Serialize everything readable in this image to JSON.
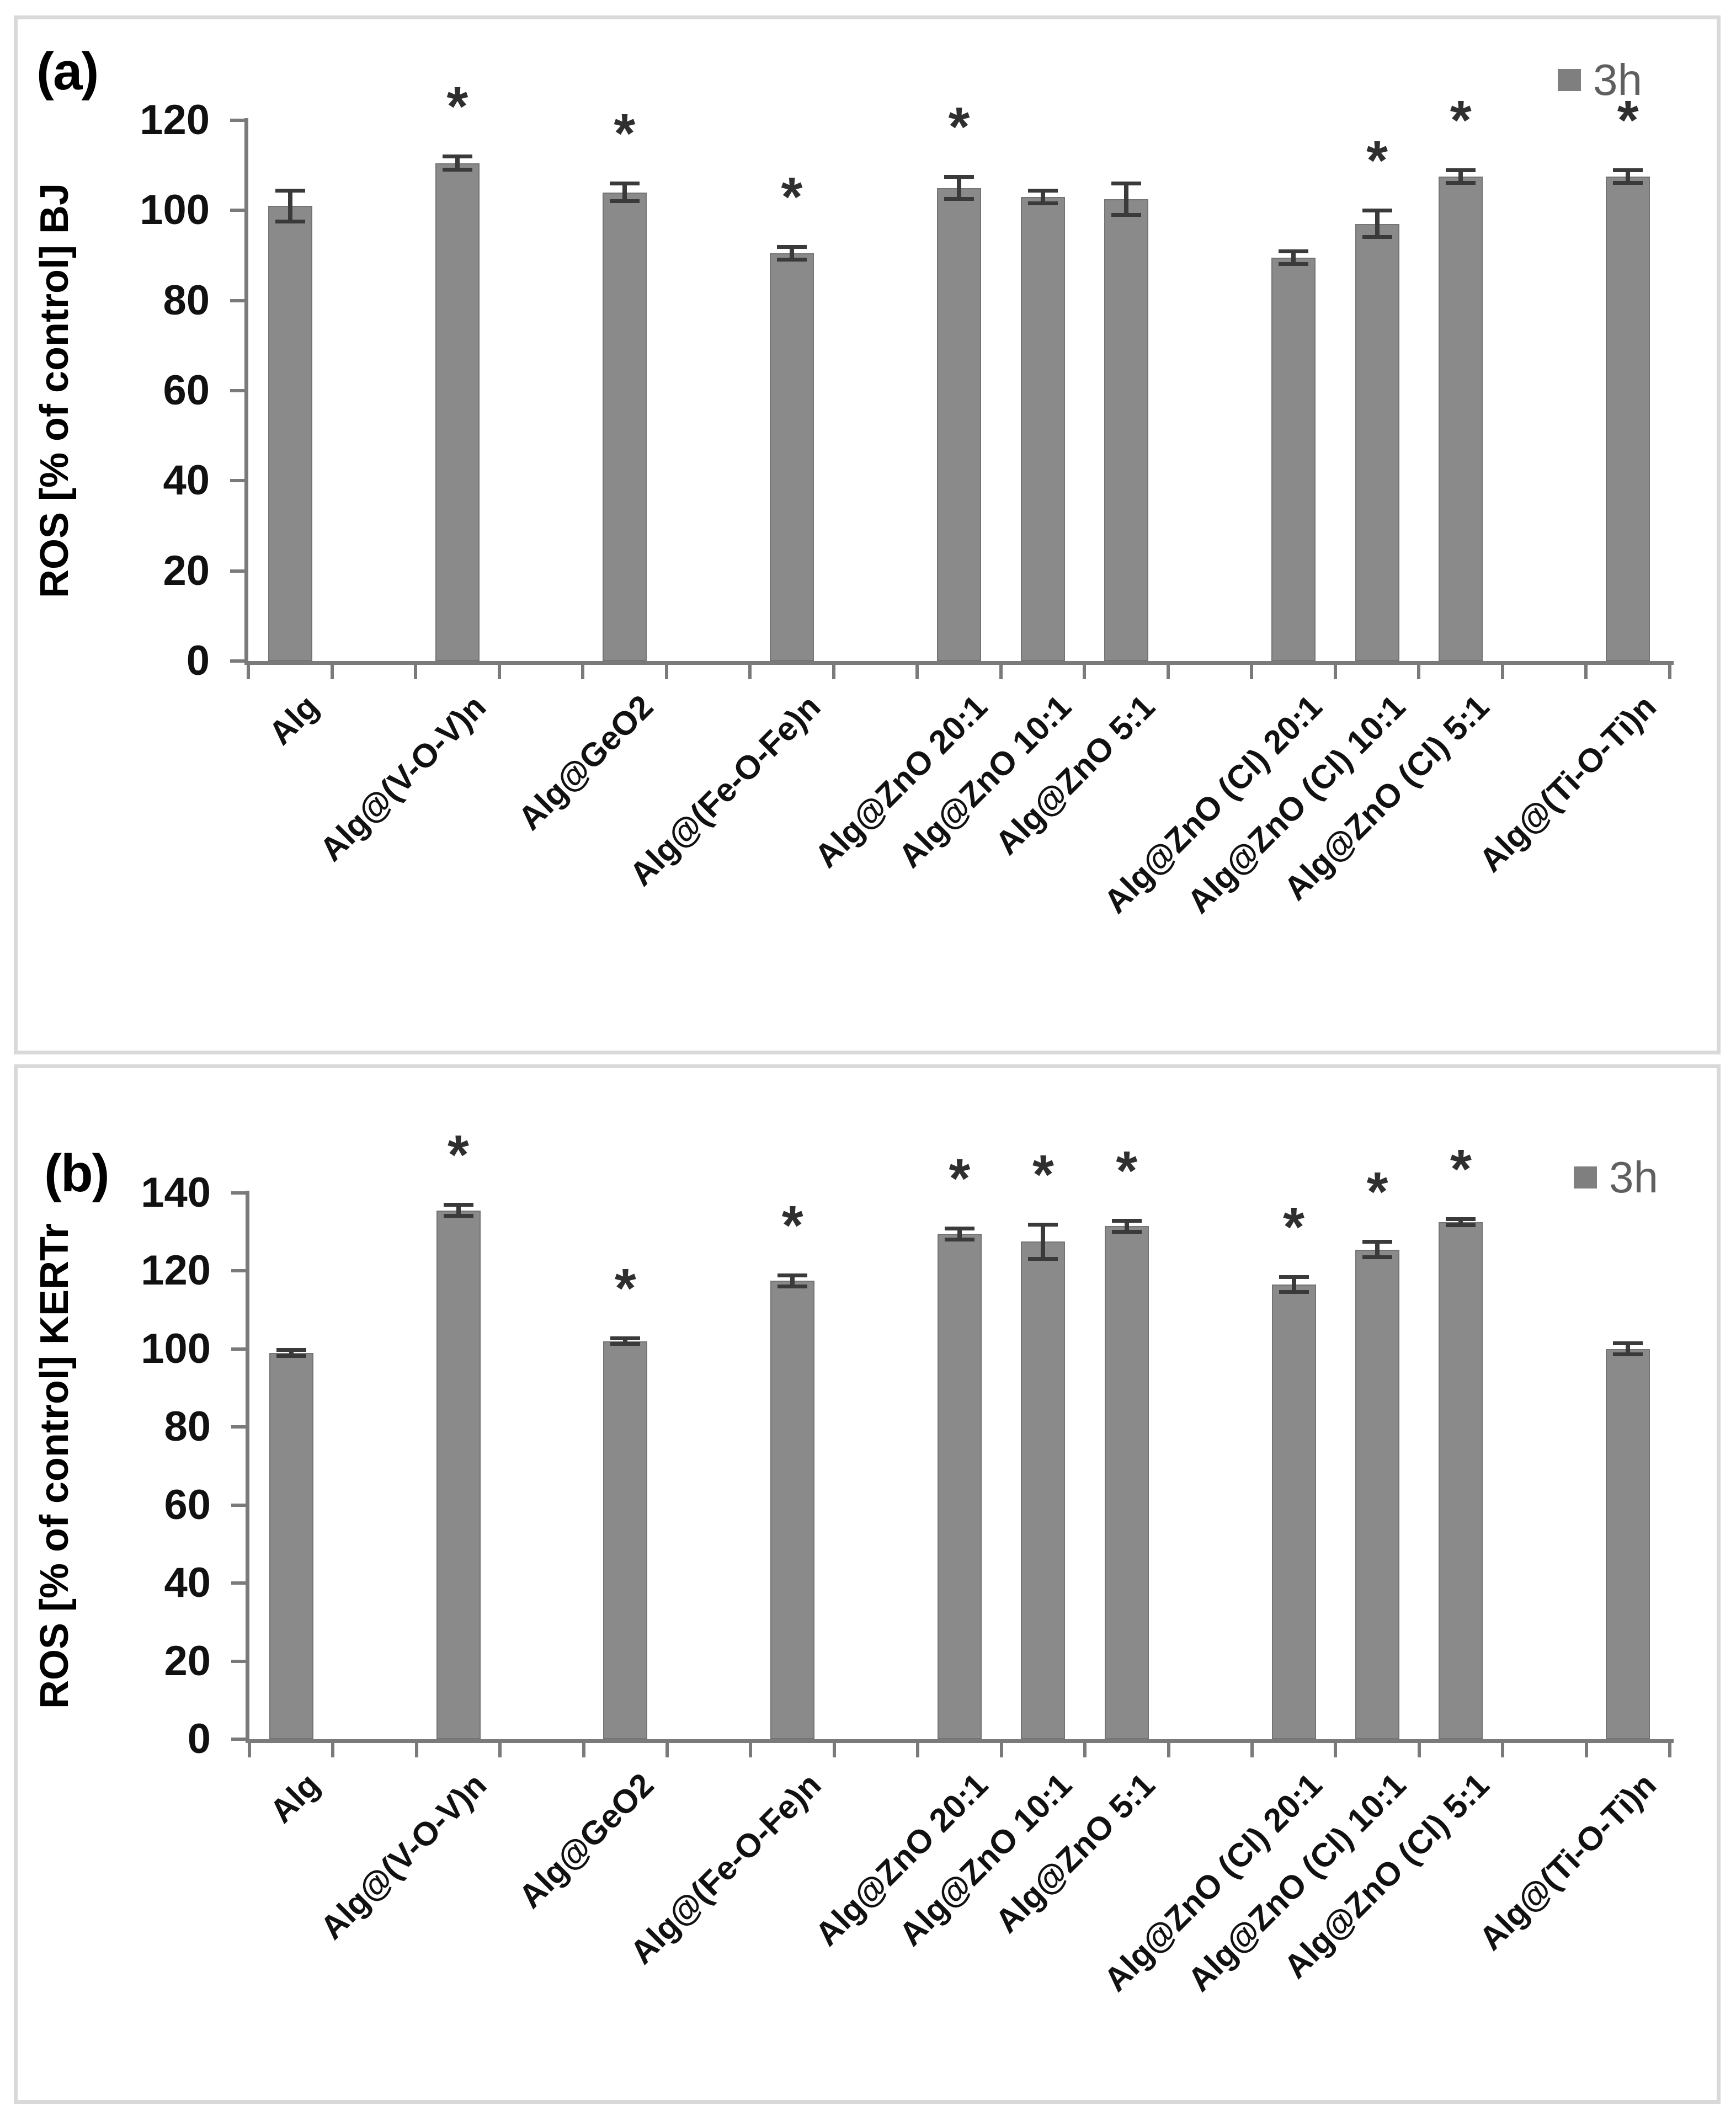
{
  "figure": {
    "significance_marker": "*",
    "legend_label": "3h",
    "colors": {
      "bar": "#8a8a8a",
      "bar_edge": "#747474",
      "error_bar": "#3a3a3a",
      "axis": "#7a7a7a",
      "tick_text": "#111111",
      "asterisk": "#2f2f2f",
      "legend_text": "#5f5f5f",
      "legend_swatch": "#7f7f7f",
      "panel_border": "#d9d9d9"
    }
  },
  "chart_data": [
    {
      "type": "bar",
      "panel_label": "(a)",
      "title": "",
      "xlabel": "",
      "ylabel": "ROS [% of control] BJ",
      "ylim": [
        0,
        120
      ],
      "ytick_step": 20,
      "ytick_labels": [
        "0",
        "20",
        "40",
        "60",
        "80",
        "100",
        "120"
      ],
      "grid": false,
      "legend": [
        "3h"
      ],
      "legend_position": "top-right",
      "categories": [
        "Alg",
        "Alg@(V-O-V)n",
        "Alg@GeO2",
        "Alg@(Fe-O-Fe)n",
        "Alg@ZnO 20:1",
        "Alg@ZnO 10:1",
        "Alg@ZnO 5:1",
        "Alg@ZnO (Cl) 20:1",
        "Alg@ZnO (Cl) 10:1",
        "Alg@ZnO (Cl) 5:1",
        "Alg@(Ti-O-Ti)n"
      ],
      "series": [
        {
          "name": "3h",
          "values": [
            101,
            110.5,
            104,
            90.5,
            105,
            103,
            102.5,
            89.5,
            97,
            107.5,
            107.5
          ],
          "errors": [
            3.5,
            1.5,
            2,
            1.5,
            2.5,
            1.5,
            3.5,
            1.5,
            3,
            1.5,
            1.5
          ],
          "significant": [
            false,
            true,
            true,
            true,
            true,
            false,
            false,
            false,
            true,
            true,
            true
          ]
        }
      ]
    },
    {
      "type": "bar",
      "panel_label": "(b)",
      "title": "",
      "xlabel": "",
      "ylabel": "ROS [% of control] KERTr",
      "ylim": [
        0,
        140
      ],
      "ytick_step": 20,
      "ytick_labels": [
        "0",
        "20",
        "40",
        "60",
        "80",
        "100",
        "120",
        "140"
      ],
      "grid": false,
      "legend": [
        "3h"
      ],
      "legend_position": "top-right",
      "categories": [
        "Alg",
        "Alg@(V-O-V)n",
        "Alg@GeO2",
        "Alg@(Fe-O-Fe)n",
        "Alg@ZnO 20:1",
        "Alg@ZnO 10:1",
        "Alg@ZnO 5:1",
        "Alg@ZnO (Cl) 20:1",
        "Alg@ZnO (Cl) 10:1",
        "Alg@ZnO (Cl) 5:1",
        "Alg@(Ti-O-Ti)n"
      ],
      "series": [
        {
          "name": "3h",
          "values": [
            99,
            135.5,
            102,
            117.5,
            129.5,
            127.5,
            131.5,
            116.5,
            125.5,
            132.5,
            100
          ],
          "errors": [
            0.8,
            1.5,
            0.8,
            1.5,
            1.5,
            4.5,
            1.5,
            2,
            2,
            0.8,
            1.5
          ],
          "significant": [
            false,
            true,
            true,
            true,
            true,
            true,
            true,
            true,
            true,
            true,
            false
          ]
        }
      ]
    }
  ]
}
